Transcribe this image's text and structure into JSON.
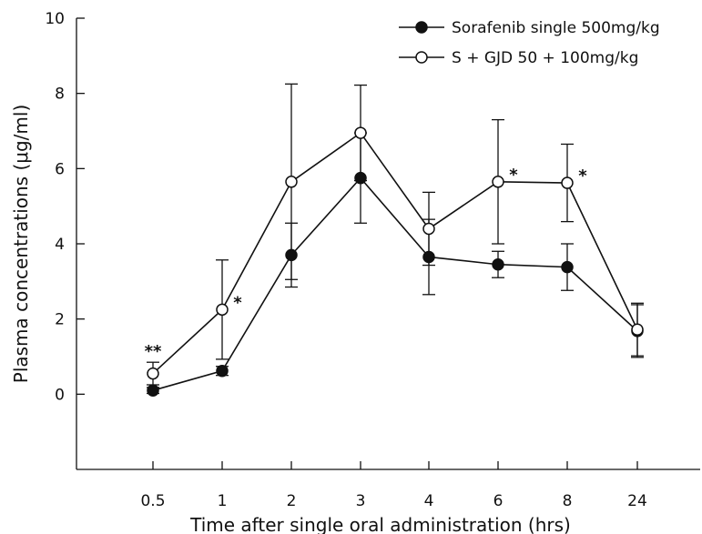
{
  "chart_data": {
    "type": "line",
    "xlabel": "Time after single oral administration (hrs)",
    "ylabel": "Plasma concentrations (μg/ml)",
    "categories": [
      "0.5",
      "1",
      "2",
      "3",
      "4",
      "6",
      "8",
      "24"
    ],
    "ylim": [
      -2,
      10
    ],
    "yticks": [
      0,
      2,
      4,
      6,
      8,
      10
    ],
    "grid": false,
    "legend_position": "top-right",
    "series": [
      {
        "name": "Sorafenib single 500mg/kg",
        "marker": "filled-circle",
        "values": [
          0.1,
          0.62,
          3.7,
          5.75,
          3.65,
          3.45,
          3.38,
          1.68
        ],
        "error": [
          0.08,
          0.12,
          0.85,
          1.2,
          1.0,
          0.35,
          0.62,
          0.7
        ]
      },
      {
        "name": "S + GJD 50 + 100mg/kg",
        "marker": "open-circle",
        "values": [
          0.55,
          2.25,
          5.65,
          6.95,
          4.4,
          5.65,
          5.62,
          1.72
        ],
        "error": [
          0.3,
          1.32,
          2.6,
          1.27,
          0.97,
          1.65,
          1.03,
          0.7
        ]
      }
    ],
    "annotations": [
      {
        "category": "0.5",
        "text": "**"
      },
      {
        "category": "1",
        "text": "*"
      },
      {
        "category": "6",
        "text": "*"
      },
      {
        "category": "8",
        "text": "*"
      }
    ]
  }
}
